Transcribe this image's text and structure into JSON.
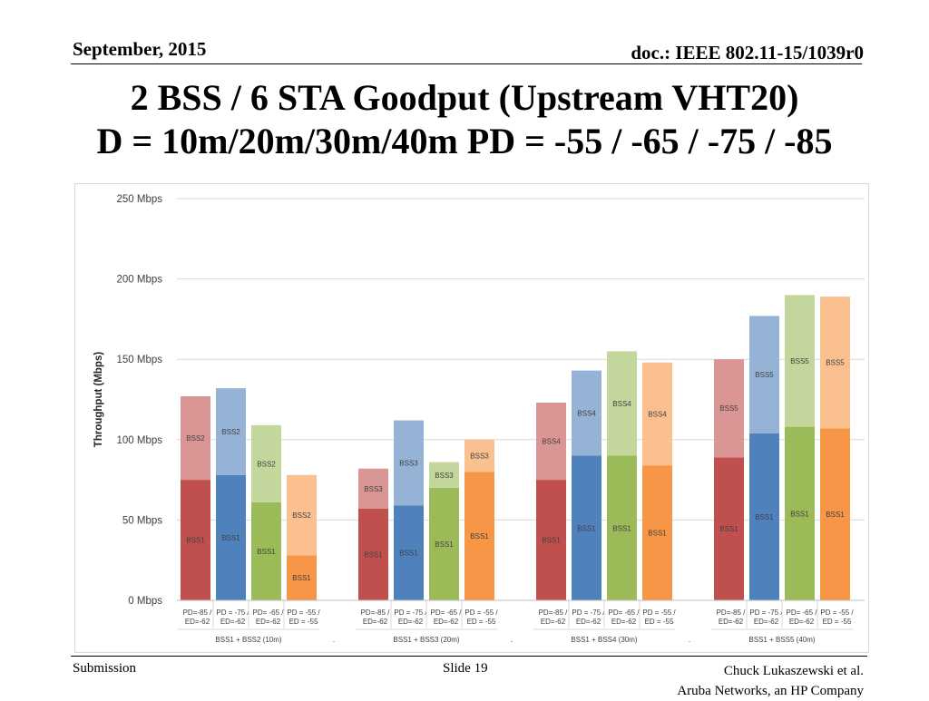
{
  "header": {
    "date": "September, 2015",
    "doc": "doc.: IEEE 802.11-15/1039r0"
  },
  "title": {
    "line1": "2 BSS / 6 STA Goodput (Upstream VHT20)",
    "line2": "D = 10m/20m/30m/40m  PD = -55 / -65 / -75 / -85"
  },
  "footer": {
    "left": "Submission",
    "center": "Slide 19",
    "right1": "Chuck Lukaszewski et al.",
    "right2": "Aruba Networks, an HP Company"
  },
  "colors": {
    "red": "#c0504d",
    "red_light": "#d99694",
    "blue": "#4f81bd",
    "blue_light": "#95b3d7",
    "green": "#9bbb59",
    "green_light": "#c3d69b",
    "orange": "#f79646",
    "orange_light": "#fac090"
  },
  "chart_data": {
    "type": "bar",
    "stacked": true,
    "ylabel": "Throughput (Mbps)",
    "ylim": [
      0,
      250
    ],
    "yticks": [
      "0 Mbps",
      "50 Mbps",
      "100 Mbps",
      "150 Mbps",
      "200 Mbps",
      "250 Mbps"
    ],
    "grid": true,
    "bar_labels": [
      "PD=-85 / ED=-62",
      "PD = -75 / ED=-62",
      "PD= -65 / ED=-62",
      "PD = -55 / ED = -55"
    ],
    "groups": [
      {
        "label": "BSS1 + BSS2 (10m)",
        "separator": ".",
        "bars": [
          {
            "color": "red",
            "segments": [
              {
                "name": "BSS1",
                "value": 75
              },
              {
                "name": "BSS2",
                "value": 52
              }
            ]
          },
          {
            "color": "blue",
            "segments": [
              {
                "name": "BSS1",
                "value": 78
              },
              {
                "name": "BSS2",
                "value": 54
              }
            ]
          },
          {
            "color": "green",
            "segments": [
              {
                "name": "BSS1",
                "value": 61
              },
              {
                "name": "BSS2",
                "value": 48
              }
            ]
          },
          {
            "color": "orange",
            "segments": [
              {
                "name": "BSS1",
                "value": 28
              },
              {
                "name": "BSS2",
                "value": 50
              }
            ]
          }
        ]
      },
      {
        "label": "BSS1 + BSS3 (20m)",
        "separator": ".",
        "bars": [
          {
            "color": "red",
            "segments": [
              {
                "name": "BSS1",
                "value": 57
              },
              {
                "name": "BSS3",
                "value": 25
              }
            ]
          },
          {
            "color": "blue",
            "segments": [
              {
                "name": "BSS1",
                "value": 59
              },
              {
                "name": "BSS3",
                "value": 53
              }
            ]
          },
          {
            "color": "green",
            "segments": [
              {
                "name": "BSS1",
                "value": 70
              },
              {
                "name": "BSS3",
                "value": 16
              }
            ]
          },
          {
            "color": "orange",
            "segments": [
              {
                "name": "BSS1",
                "value": 80
              },
              {
                "name": "BSS3",
                "value": 20
              }
            ]
          }
        ]
      },
      {
        "label": "BSS1 + BSS4 (30m)",
        "separator": ".",
        "bars": [
          {
            "color": "red",
            "segments": [
              {
                "name": "BSS1",
                "value": 75
              },
              {
                "name": "BSS4",
                "value": 48
              }
            ]
          },
          {
            "color": "blue",
            "segments": [
              {
                "name": "BSS1",
                "value": 90
              },
              {
                "name": "BSS4",
                "value": 53
              }
            ]
          },
          {
            "color": "green",
            "segments": [
              {
                "name": "BSS1",
                "value": 90
              },
              {
                "name": "BSS4",
                "value": 65
              }
            ]
          },
          {
            "color": "orange",
            "segments": [
              {
                "name": "BSS1",
                "value": 84
              },
              {
                "name": "BSS4",
                "value": 64
              }
            ]
          }
        ]
      },
      {
        "label": "BSS1 + BSS5 (40m)",
        "separator": "",
        "bars": [
          {
            "color": "red",
            "segments": [
              {
                "name": "BSS1",
                "value": 89
              },
              {
                "name": "BSS5",
                "value": 61
              }
            ]
          },
          {
            "color": "blue",
            "segments": [
              {
                "name": "BSS1",
                "value": 104
              },
              {
                "name": "BSS5",
                "value": 73
              }
            ]
          },
          {
            "color": "green",
            "segments": [
              {
                "name": "BSS1",
                "value": 108
              },
              {
                "name": "BSS5",
                "value": 82
              }
            ]
          },
          {
            "color": "orange",
            "segments": [
              {
                "name": "BSS1",
                "value": 107
              },
              {
                "name": "BSS5",
                "value": 82
              }
            ]
          }
        ]
      }
    ]
  }
}
